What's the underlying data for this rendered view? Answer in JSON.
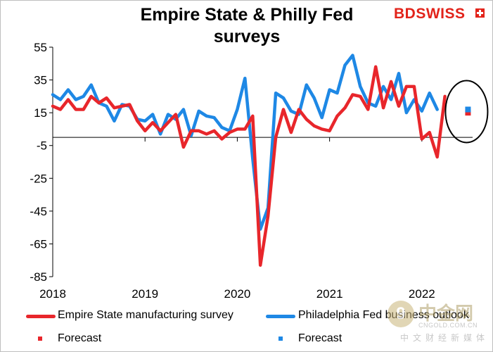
{
  "chart_data": {
    "type": "line",
    "title": "Empire State & Philly Fed surveys",
    "title_lines": [
      "Empire State & Philly Fed",
      "surveys"
    ],
    "brand": {
      "part1": "BD",
      "part2": "SWISS"
    },
    "ylim": [
      -85,
      55
    ],
    "yticks": [
      55,
      35,
      15,
      -5,
      -25,
      -45,
      -65,
      -85
    ],
    "xlim": [
      2018.0,
      2022.55
    ],
    "xticks": [
      {
        "value": 2018,
        "label": "2018"
      },
      {
        "value": 2019,
        "label": "2019"
      },
      {
        "value": 2020,
        "label": "2020"
      },
      {
        "value": 2021,
        "label": "2021"
      },
      {
        "value": 2022,
        "label": "2022"
      }
    ],
    "series": [
      {
        "name": "Empire State manufacturing survey",
        "color": "#e8262b",
        "start": 2018.0,
        "step": 0.08333,
        "values": [
          19,
          17,
          23,
          17,
          17,
          25,
          21,
          24,
          18,
          19,
          20,
          10,
          4,
          9,
          4,
          9,
          14,
          -6,
          4,
          4,
          2,
          4,
          -1,
          3,
          5,
          5,
          13,
          -78,
          -48,
          0,
          17,
          3,
          17,
          11,
          7,
          5,
          4,
          13,
          18,
          26,
          25,
          17,
          43,
          18,
          34,
          19,
          31,
          31,
          -1,
          3,
          -12,
          25
        ],
        "forecast": 15,
        "forecast_color": "#e8262b"
      },
      {
        "name": "Philadelphia Fed business outlook",
        "color": "#1e88e5",
        "start": 2018.0,
        "step": 0.08333,
        "values": [
          26,
          23,
          29,
          23,
          25,
          32,
          21,
          19,
          10,
          20,
          19,
          11,
          10,
          14,
          2,
          14,
          11,
          17,
          1,
          16,
          13,
          12,
          6,
          4,
          17,
          36,
          -13,
          -56,
          -43,
          27,
          24,
          16,
          14,
          32,
          24,
          12,
          29,
          27,
          44,
          50,
          31,
          21,
          19,
          31,
          23,
          39,
          15,
          23,
          16,
          27,
          17
        ],
        "forecast": 17,
        "forecast_color": "#1e88e5"
      }
    ],
    "legend": [
      {
        "label": "Empire State manufacturing survey",
        "kind": "line",
        "color": "#e8262b"
      },
      {
        "label": "Philadelphia Fed business outlook",
        "kind": "line",
        "color": "#1e88e5"
      },
      {
        "label": "Forecast",
        "kind": "square",
        "color": "#e8262b"
      },
      {
        "label": "Forecast",
        "kind": "square",
        "color": "#1e88e5"
      }
    ],
    "annotations": [
      {
        "type": "ellipse",
        "around": "forecast",
        "color": "#000000"
      }
    ]
  },
  "watermark": {
    "logo": "9",
    "name_cn": "中金网",
    "url": "CNGOLD.COM.CN",
    "sub_cn": "中文财经新媒体"
  }
}
